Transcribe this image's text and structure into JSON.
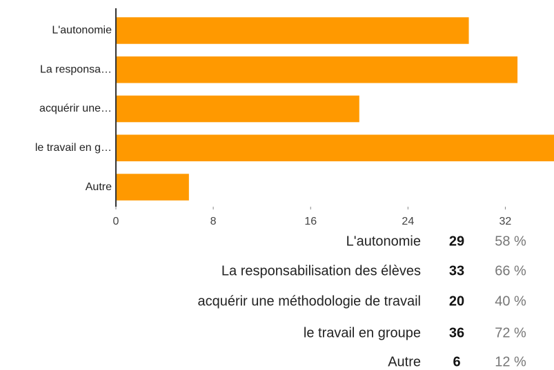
{
  "chart_data": {
    "type": "bar",
    "orientation": "horizontal",
    "categories": [
      "L'autonomie",
      "La responsa…",
      "acquérir une…",
      "le travail en g…",
      "Autre"
    ],
    "values": [
      29,
      33,
      20,
      36,
      6
    ],
    "color": "#ff9900",
    "xlim": [
      0,
      36
    ],
    "xticks": [
      0,
      8,
      16,
      24,
      32
    ],
    "full_names": [
      "L'autonomie",
      "La responsabilisation des élèves",
      "acquérir une méthodologie de travail",
      "le travail en groupe",
      "Autre"
    ],
    "percents": [
      58,
      66,
      40,
      72,
      12
    ],
    "percent_labels": [
      "58 %",
      "66 %",
      "40 %",
      "72 %",
      "12 %"
    ]
  }
}
